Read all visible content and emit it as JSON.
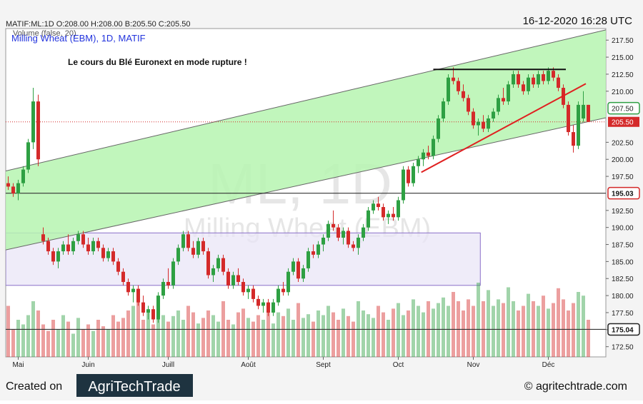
{
  "chart_data": {
    "type": "candlestick",
    "header": "MATIF:ML:1D O:208.00 H:208.00 B:205.50 C:205.50",
    "volume_label": "Volume (false, 20)",
    "title": "Milling Wheat (EBM), 1D, MATIF",
    "timestamp": "16-12-2020 16:28 UTC",
    "annotation": "Le cours du Blé Euronext en mode rupture !",
    "watermark": [
      "ML, 1D",
      "Milling Wheat (EBM)"
    ],
    "footer": {
      "created": "Created on",
      "logo": "AgriTechTrade",
      "site": "© agritechtrade.com"
    },
    "ylim": [
      171,
      219.2
    ],
    "yticks": [
      {
        "value": 172.5,
        "label": "172.50"
      },
      {
        "value": 175,
        "label": "175.00"
      },
      {
        "value": 177.5,
        "label": "177.50"
      },
      {
        "value": 180,
        "label": "180.00"
      },
      {
        "value": 182.5,
        "label": "182.50"
      },
      {
        "value": 185,
        "label": "185.00"
      },
      {
        "value": 187.5,
        "label": "187.50"
      },
      {
        "value": 190,
        "label": "190.00"
      },
      {
        "value": 192.5,
        "label": "192.50"
      },
      {
        "value": 197.5,
        "label": "197.50"
      },
      {
        "value": 200,
        "label": "200.00"
      },
      {
        "value": 202.5,
        "label": "202.50"
      },
      {
        "value": 210,
        "label": "210.00"
      },
      {
        "value": 212.5,
        "label": "212.50"
      },
      {
        "value": 215,
        "label": "215.00"
      },
      {
        "value": 217.5,
        "label": "217.50"
      }
    ],
    "x_labels": [
      {
        "index": 2,
        "label": "Mai"
      },
      {
        "index": 16,
        "label": "Juin"
      },
      {
        "index": 32,
        "label": "Juill"
      },
      {
        "index": 48,
        "label": "Août"
      },
      {
        "index": 63,
        "label": "Sept"
      },
      {
        "index": 78,
        "label": "Oct"
      },
      {
        "index": 93,
        "label": "Nov"
      },
      {
        "index": 108,
        "label": "Déc"
      }
    ],
    "candles": [
      [
        196.5,
        197.5,
        195.5,
        196.0
      ],
      [
        196.0,
        196.5,
        194.5,
        195.0
      ],
      [
        195.0,
        197.0,
        194.0,
        196.5
      ],
      [
        196.5,
        199.0,
        196.0,
        198.5
      ],
      [
        198.5,
        203.0,
        198.0,
        202.5
      ],
      [
        202.5,
        210.5,
        201.5,
        208.5
      ],
      [
        208.5,
        209.5,
        199.0,
        200.0
      ],
      [
        189.0,
        190.0,
        187.5,
        188.0
      ],
      [
        188.0,
        188.5,
        186.0,
        186.5
      ],
      [
        186.5,
        187.0,
        184.5,
        185.0
      ],
      [
        185.0,
        187.0,
        184.0,
        186.5
      ],
      [
        186.5,
        188.0,
        186.0,
        187.5
      ],
      [
        187.5,
        189.0,
        186.0,
        186.5
      ],
      [
        186.5,
        188.5,
        186.0,
        188.0
      ],
      [
        188.0,
        189.5,
        187.5,
        189.0
      ],
      [
        189.0,
        189.5,
        187.0,
        187.5
      ],
      [
        187.5,
        188.5,
        186.0,
        186.5
      ],
      [
        186.5,
        188.5,
        186.0,
        188.0
      ],
      [
        188.0,
        188.5,
        186.5,
        187.0
      ],
      [
        187.0,
        187.5,
        185.0,
        185.5
      ],
      [
        185.5,
        187.0,
        185.0,
        186.5
      ],
      [
        186.5,
        187.0,
        184.5,
        185.0
      ],
      [
        185.0,
        185.5,
        183.0,
        183.5
      ],
      [
        183.5,
        184.0,
        181.5,
        182.0
      ],
      [
        182.0,
        182.5,
        180.0,
        180.5
      ],
      [
        180.5,
        181.5,
        179.0,
        181.0
      ],
      [
        181.0,
        181.5,
        178.5,
        179.0
      ],
      [
        179.0,
        180.0,
        177.0,
        177.5
      ],
      [
        177.5,
        178.5,
        176.5,
        178.0
      ],
      [
        178.0,
        178.5,
        176.0,
        176.5
      ],
      [
        176.5,
        180.5,
        176.0,
        180.0
      ],
      [
        180.0,
        182.5,
        179.5,
        182.0
      ],
      [
        182.0,
        184.0,
        181.0,
        181.5
      ],
      [
        181.5,
        185.5,
        181.0,
        185.0
      ],
      [
        185.0,
        187.5,
        184.5,
        187.0
      ],
      [
        187.0,
        189.5,
        186.5,
        189.0
      ],
      [
        189.0,
        189.5,
        186.5,
        187.0
      ],
      [
        187.0,
        188.0,
        185.5,
        186.0
      ],
      [
        186.0,
        188.5,
        185.5,
        188.0
      ],
      [
        188.0,
        188.5,
        186.0,
        186.5
      ],
      [
        186.5,
        187.0,
        182.5,
        183.0
      ],
      [
        183.0,
        184.5,
        182.0,
        184.0
      ],
      [
        184.0,
        186.0,
        183.5,
        185.5
      ],
      [
        185.5,
        186.0,
        183.0,
        183.5
      ],
      [
        183.5,
        184.0,
        181.0,
        181.5
      ],
      [
        181.5,
        183.5,
        181.0,
        183.0
      ],
      [
        183.0,
        184.0,
        181.5,
        182.0
      ],
      [
        182.0,
        182.5,
        180.0,
        180.5
      ],
      [
        180.5,
        181.5,
        179.5,
        181.0
      ],
      [
        181.0,
        181.5,
        179.0,
        179.5
      ],
      [
        179.5,
        180.0,
        178.0,
        178.5
      ],
      [
        178.5,
        179.5,
        177.5,
        179.0
      ],
      [
        179.0,
        179.5,
        177.0,
        177.5
      ],
      [
        177.5,
        179.5,
        177.0,
        179.0
      ],
      [
        179.0,
        181.5,
        178.5,
        181.0
      ],
      [
        181.0,
        182.0,
        180.0,
        180.5
      ],
      [
        180.5,
        184.0,
        180.0,
        183.5
      ],
      [
        183.5,
        185.5,
        183.0,
        185.0
      ],
      [
        185.0,
        185.5,
        182.0,
        182.5
      ],
      [
        182.5,
        184.5,
        182.0,
        184.0
      ],
      [
        184.0,
        187.0,
        183.5,
        186.5
      ],
      [
        186.5,
        187.5,
        185.5,
        186.0
      ],
      [
        186.0,
        188.0,
        185.5,
        187.5
      ],
      [
        187.5,
        189.0,
        186.5,
        188.5
      ],
      [
        188.5,
        191.0,
        188.0,
        190.5
      ],
      [
        190.5,
        192.5,
        189.5,
        190.0
      ],
      [
        190.0,
        190.5,
        188.0,
        188.5
      ],
      [
        188.5,
        190.0,
        187.5,
        189.5
      ],
      [
        189.5,
        190.0,
        187.0,
        187.5
      ],
      [
        187.5,
        188.0,
        186.5,
        187.0
      ],
      [
        187.0,
        189.0,
        186.0,
        188.5
      ],
      [
        188.5,
        190.5,
        188.0,
        190.0
      ],
      [
        190.0,
        193.0,
        189.5,
        192.5
      ],
      [
        192.5,
        194.0,
        192.0,
        193.5
      ],
      [
        193.5,
        194.5,
        192.5,
        193.0
      ],
      [
        193.0,
        193.5,
        191.0,
        191.5
      ],
      [
        191.5,
        192.5,
        190.5,
        192.0
      ],
      [
        192.0,
        193.0,
        191.0,
        191.5
      ],
      [
        191.5,
        194.5,
        191.0,
        194.0
      ],
      [
        194.0,
        199.0,
        193.5,
        198.5
      ],
      [
        198.5,
        199.0,
        196.0,
        196.5
      ],
      [
        196.5,
        199.5,
        196.0,
        199.0
      ],
      [
        199.0,
        200.5,
        198.0,
        200.0
      ],
      [
        200.0,
        201.5,
        199.0,
        201.0
      ],
      [
        201.0,
        202.0,
        200.0,
        200.5
      ],
      [
        200.5,
        203.5,
        200.0,
        203.0
      ],
      [
        203.0,
        206.5,
        202.5,
        206.0
      ],
      [
        206.0,
        209.0,
        205.5,
        208.5
      ],
      [
        208.5,
        212.5,
        208.0,
        212.0
      ],
      [
        212.0,
        213.5,
        211.0,
        211.5
      ],
      [
        211.5,
        212.0,
        209.5,
        210.0
      ],
      [
        210.0,
        211.0,
        208.5,
        209.0
      ],
      [
        209.0,
        209.5,
        206.5,
        207.0
      ],
      [
        207.0,
        207.5,
        204.5,
        205.0
      ],
      [
        205.0,
        206.0,
        203.5,
        205.5
      ],
      [
        205.5,
        206.5,
        204.0,
        204.5
      ],
      [
        204.5,
        206.5,
        204.0,
        206.0
      ],
      [
        206.0,
        207.5,
        205.5,
        207.0
      ],
      [
        207.0,
        209.5,
        206.5,
        209.0
      ],
      [
        209.0,
        210.5,
        208.0,
        208.5
      ],
      [
        208.5,
        211.5,
        208.0,
        211.0
      ],
      [
        211.0,
        213.0,
        210.5,
        212.5
      ],
      [
        212.5,
        213.0,
        210.5,
        211.0
      ],
      [
        211.0,
        211.5,
        209.5,
        210.0
      ],
      [
        210.0,
        212.5,
        209.5,
        212.0
      ],
      [
        212.0,
        212.5,
        210.5,
        211.0
      ],
      [
        211.0,
        213.0,
        210.5,
        212.5
      ],
      [
        212.5,
        213.0,
        211.0,
        211.5
      ],
      [
        211.5,
        213.5,
        211.0,
        213.0
      ],
      [
        213.0,
        213.5,
        211.5,
        212.0
      ],
      [
        212.0,
        212.5,
        210.0,
        210.5
      ],
      [
        210.5,
        211.0,
        207.5,
        208.0
      ],
      [
        208.0,
        208.5,
        203.5,
        204.0
      ],
      [
        204.0,
        205.0,
        201.0,
        202.0
      ],
      [
        202.0,
        208.5,
        201.5,
        208.0
      ],
      [
        206.0,
        210.0,
        205.5,
        208.0
      ],
      [
        208.0,
        208.0,
        205.5,
        205.5
      ]
    ],
    "volume": [
      55,
      30,
      40,
      35,
      45,
      60,
      50,
      35,
      28,
      40,
      30,
      45,
      38,
      25,
      42,
      30,
      35,
      28,
      40,
      33,
      30,
      45,
      38,
      42,
      50,
      55,
      60,
      40,
      48,
      35,
      52,
      45,
      38,
      44,
      50,
      40,
      55,
      48,
      36,
      42,
      50,
      45,
      38,
      60,
      40,
      35,
      48,
      52,
      42,
      38,
      45,
      40,
      50,
      36,
      48,
      44,
      52,
      40,
      58,
      42,
      46,
      38,
      50,
      45,
      55,
      48,
      40,
      52,
      44,
      38,
      60,
      50,
      46,
      42,
      55,
      48,
      40,
      52,
      58,
      45,
      50,
      62,
      55,
      48,
      60,
      52,
      58,
      64,
      55,
      70,
      60,
      50,
      62,
      55,
      80,
      60,
      72,
      55,
      62,
      58,
      75,
      60,
      50,
      55,
      68,
      60,
      55,
      66,
      52,
      58,
      74,
      62,
      50,
      58,
      70,
      66,
      40
    ],
    "vlim": [
      0,
      100
    ],
    "up_color": "#2ea043",
    "down_color": "#d42a2a",
    "channel": {
      "from": -0.5,
      "to": 119.5,
      "upper": [
        198.3,
        219.0
      ],
      "lower": [
        186.7,
        206.1
      ],
      "color": "#b6f5b0"
    },
    "range_box": {
      "from": -0.5,
      "to": 94.4,
      "top": 189.2,
      "bottom": 181.5,
      "color": "#e8e4f7"
    },
    "trend_line": {
      "from": [
        82.6,
        198.1
      ],
      "to": [
        115.5,
        211.1
      ],
      "color": "#e02020"
    },
    "resistance": {
      "from": [
        85,
        213.2
      ],
      "to": [
        111.5,
        213.2
      ],
      "color": "#111111"
    },
    "levels": [
      {
        "value": 195.03,
        "label": "195.03",
        "color": "#d42a2a"
      },
      {
        "value": 175.04,
        "label": "175.04",
        "color": "#222222"
      }
    ],
    "last": {
      "value": 205.5,
      "label": "205.50",
      "color": "#d42a2a"
    },
    "marked_tick": {
      "value": 207.5,
      "label": "207.50",
      "color": "#2ea043"
    }
  }
}
